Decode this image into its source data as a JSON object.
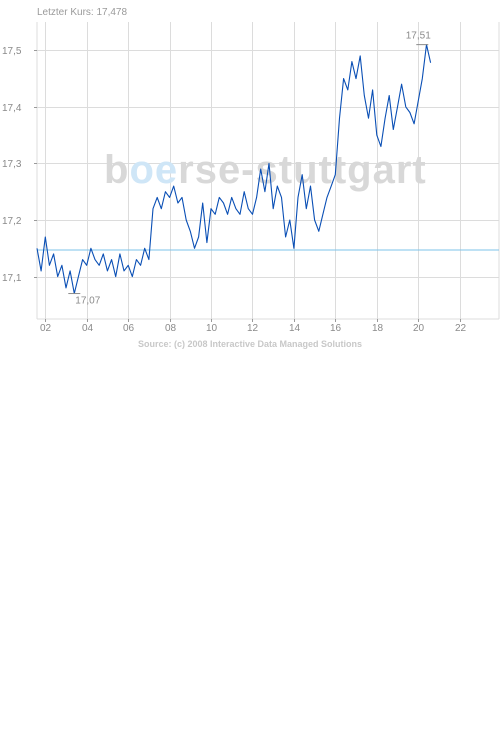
{
  "header": {
    "last_price_label": "Letzter Kurs: 17,478"
  },
  "watermark": {
    "text_prefix": "b",
    "text_highlight": "oe",
    "text_suffix": "rse-stuttgart"
  },
  "source": {
    "text": "Source: (c) 2008 Interactive Data Managed Solutions"
  },
  "colors": {
    "series_line": "#0a4fb5",
    "reference_line": "#7ec3ea",
    "grid": "#dcdcdc",
    "watermark": "#d8d8d8",
    "watermark_accent": "#cfe6f7"
  },
  "chart_data": {
    "type": "line",
    "title": "",
    "xlabel": "",
    "ylabel": "",
    "xlim": [
      1.6,
      23.9
    ],
    "ylim": [
      17.025,
      17.55
    ],
    "x_ticks": [
      2,
      4,
      6,
      8,
      10,
      12,
      14,
      16,
      18,
      20,
      22
    ],
    "x_tick_labels": [
      "02",
      "04",
      "06",
      "08",
      "10",
      "12",
      "14",
      "16",
      "18",
      "20",
      "22"
    ],
    "y_ticks": [
      17.1,
      17.2,
      17.3,
      17.4,
      17.5
    ],
    "y_tick_labels": [
      "17,1",
      "17,2",
      "17,3",
      "17,4",
      "17,5"
    ],
    "grid": true,
    "reference_line": {
      "y": 17.147
    },
    "annotations": [
      {
        "label": "17,07",
        "x": 3.4,
        "y": 17.07
      },
      {
        "label": "17,51",
        "x": 20.1,
        "y": 17.51
      }
    ],
    "series": [
      {
        "x": [
          1.6,
          1.8,
          2.0,
          2.2,
          2.4,
          2.6,
          2.8,
          3.0,
          3.2,
          3.4,
          3.6,
          3.8,
          4.0,
          4.2,
          4.4,
          4.6,
          4.8,
          5.0,
          5.2,
          5.4,
          5.6,
          5.8,
          6.0,
          6.2,
          6.4,
          6.6,
          6.8,
          7.0,
          7.2,
          7.4,
          7.6,
          7.8,
          8.0,
          8.2,
          8.4,
          8.6,
          8.8,
          9.0,
          9.2,
          9.4,
          9.6,
          9.8,
          10.0,
          10.2,
          10.4,
          10.6,
          10.8,
          11.0,
          11.2,
          11.4,
          11.6,
          11.8,
          12.0,
          12.2,
          12.4,
          12.6,
          12.8,
          13.0,
          13.2,
          13.4,
          13.6,
          13.8,
          14.0,
          14.2,
          14.4,
          14.6,
          14.8,
          15.0,
          15.2,
          15.4,
          15.6,
          15.8,
          16.0,
          16.2,
          16.4,
          16.6,
          16.8,
          17.0,
          17.2,
          17.4,
          17.6,
          17.8,
          18.0,
          18.2,
          18.4,
          18.6,
          18.8,
          19.0,
          19.2,
          19.4,
          19.6,
          19.8,
          20.0,
          20.2,
          20.4,
          20.6
        ],
        "values": [
          17.15,
          17.11,
          17.17,
          17.12,
          17.14,
          17.1,
          17.12,
          17.08,
          17.11,
          17.07,
          17.1,
          17.13,
          17.12,
          17.15,
          17.13,
          17.12,
          17.14,
          17.11,
          17.13,
          17.1,
          17.14,
          17.11,
          17.12,
          17.1,
          17.13,
          17.12,
          17.15,
          17.13,
          17.22,
          17.24,
          17.22,
          17.25,
          17.24,
          17.26,
          17.23,
          17.24,
          17.2,
          17.18,
          17.15,
          17.17,
          17.23,
          17.16,
          17.22,
          17.21,
          17.24,
          17.23,
          17.21,
          17.24,
          17.22,
          17.21,
          17.25,
          17.22,
          17.21,
          17.24,
          17.29,
          17.25,
          17.3,
          17.22,
          17.26,
          17.24,
          17.17,
          17.2,
          17.15,
          17.24,
          17.28,
          17.22,
          17.26,
          17.2,
          17.18,
          17.21,
          17.24,
          17.26,
          17.28,
          17.38,
          17.45,
          17.43,
          17.48,
          17.45,
          17.49,
          17.42,
          17.38,
          17.43,
          17.35,
          17.33,
          17.38,
          17.42,
          17.36,
          17.4,
          17.44,
          17.4,
          17.39,
          17.37,
          17.41,
          17.45,
          17.51,
          17.478
        ]
      }
    ]
  }
}
